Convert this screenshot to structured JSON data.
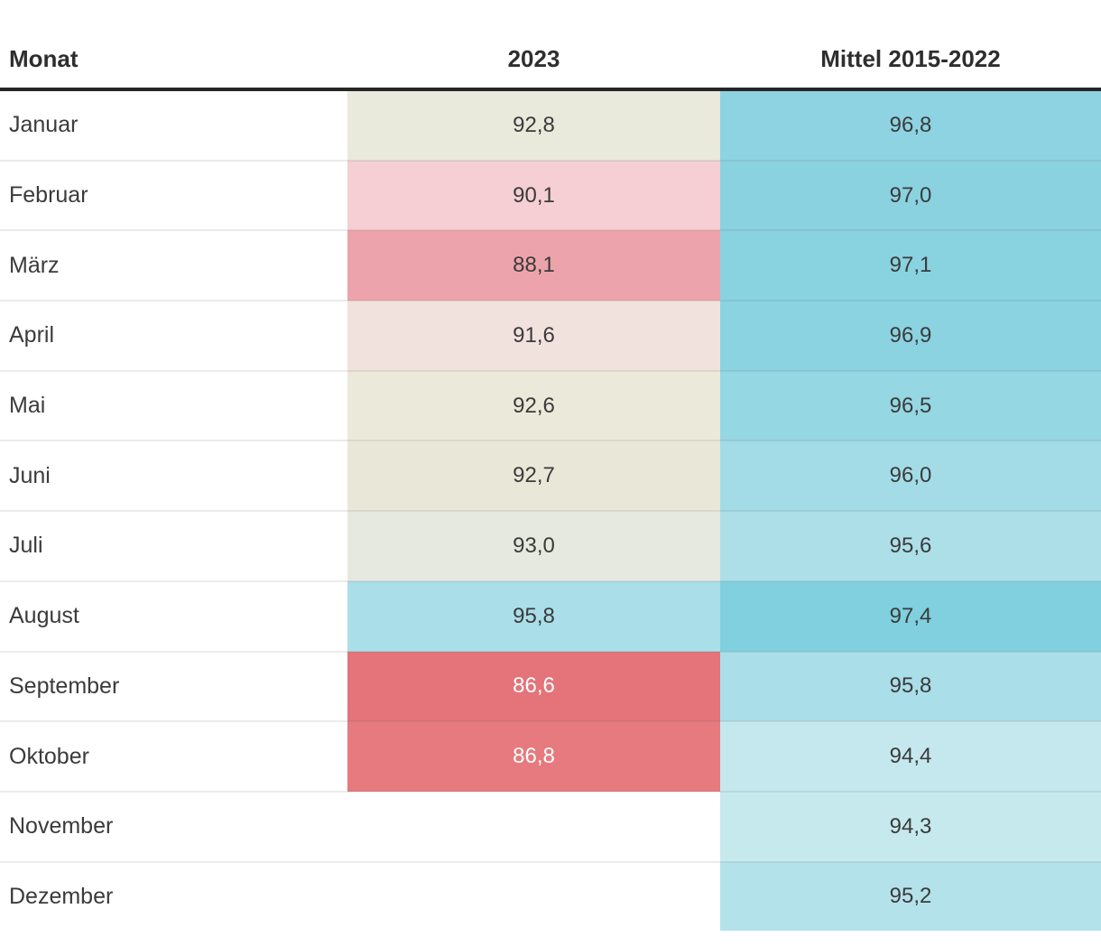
{
  "table": {
    "header": {
      "month_label": "Monat",
      "col_2023_label": "2023",
      "col_mittel_label": "Mittel 2015-2022"
    },
    "rows": [
      {
        "month": "Januar",
        "y2023": "92,8",
        "y2023_bg": "#e9e9dc",
        "y2023_text": "#3b3b3b",
        "mittel": "96,8",
        "mittel_bg": "#8dd3e1"
      },
      {
        "month": "Februar",
        "y2023": "90,1",
        "y2023_bg": "#f5cfd3",
        "y2023_text": "#3b3b3b",
        "mittel": "97,0",
        "mittel_bg": "#8ad2e0"
      },
      {
        "month": "März",
        "y2023": "88,1",
        "y2023_bg": "#eda3ab",
        "y2023_text": "#3b3b3b",
        "mittel": "97,1",
        "mittel_bg": "#89d2e0"
      },
      {
        "month": "April",
        "y2023": "91,6",
        "y2023_bg": "#f2e2de",
        "y2023_text": "#3b3b3b",
        "mittel": "96,9",
        "mittel_bg": "#8bd3e1"
      },
      {
        "month": "Mai",
        "y2023": "92,6",
        "y2023_bg": "#eae9da",
        "y2023_text": "#3b3b3b",
        "mittel": "96,5",
        "mittel_bg": "#95d7e3"
      },
      {
        "month": "Juni",
        "y2023": "92,7",
        "y2023_bg": "#e9e8d8",
        "y2023_text": "#3b3b3b",
        "mittel": "96,0",
        "mittel_bg": "#a3dce7"
      },
      {
        "month": "Juli",
        "y2023": "93,0",
        "y2023_bg": "#e6e9df",
        "y2023_text": "#3b3b3b",
        "mittel": "95,6",
        "mittel_bg": "#addfe9"
      },
      {
        "month": "August",
        "y2023": "95,8",
        "y2023_bg": "#aadfe9",
        "y2023_text": "#3b3b3b",
        "mittel": "97,4",
        "mittel_bg": "#80d0df"
      },
      {
        "month": "September",
        "y2023": "86,6",
        "y2023_bg": "#e4737a",
        "y2023_text": "#ffffff",
        "mittel": "95,8",
        "mittel_bg": "#aadee8"
      },
      {
        "month": "Oktober",
        "y2023": "86,8",
        "y2023_bg": "#e67a7e",
        "y2023_text": "#ffffff",
        "mittel": "94,4",
        "mittel_bg": "#c5e8ee"
      },
      {
        "month": "November",
        "y2023": "",
        "y2023_bg": null,
        "y2023_text": "#3b3b3b",
        "mittel": "94,3",
        "mittel_bg": "#c6e9ee"
      },
      {
        "month": "Dezember",
        "y2023": "",
        "y2023_bg": null,
        "y2023_text": "#3b3b3b",
        "mittel": "95,2",
        "mittel_bg": "#b4e2eb"
      }
    ],
    "style": {
      "header_rule_color": "#262626",
      "row_separator_color": "rgba(110,110,110,0.14)",
      "header_text_color": "#2e2e2e",
      "body_text_color": "#3b3b3b",
      "low_value_color": "#e4737a",
      "high_value_color": "#80d0df",
      "neutral_color": "#e9e9dc"
    }
  },
  "chart_data": {
    "type": "table",
    "title": "",
    "columns": [
      "Monat",
      "2023",
      "Mittel 2015-2022"
    ],
    "categories": [
      "Januar",
      "Februar",
      "März",
      "April",
      "Mai",
      "Juni",
      "Juli",
      "August",
      "September",
      "Oktober",
      "November",
      "Dezember"
    ],
    "series": [
      {
        "name": "2023",
        "values": [
          92.8,
          90.1,
          88.1,
          91.6,
          92.6,
          92.7,
          93.0,
          95.8,
          86.6,
          86.8,
          null,
          null
        ]
      },
      {
        "name": "Mittel 2015-2022",
        "values": [
          96.8,
          97.0,
          97.1,
          96.9,
          96.5,
          96.0,
          95.6,
          97.4,
          95.8,
          94.4,
          94.3,
          95.2
        ]
      }
    ],
    "value_format": "decimal-comma, 1 fraction digit",
    "heatmap": true,
    "heatmap_note": "cell backgrounds encode value: red ≈ 86-88 low, beige ≈ 92-93 neutral, cyan ≈ 94-97.4 high"
  }
}
